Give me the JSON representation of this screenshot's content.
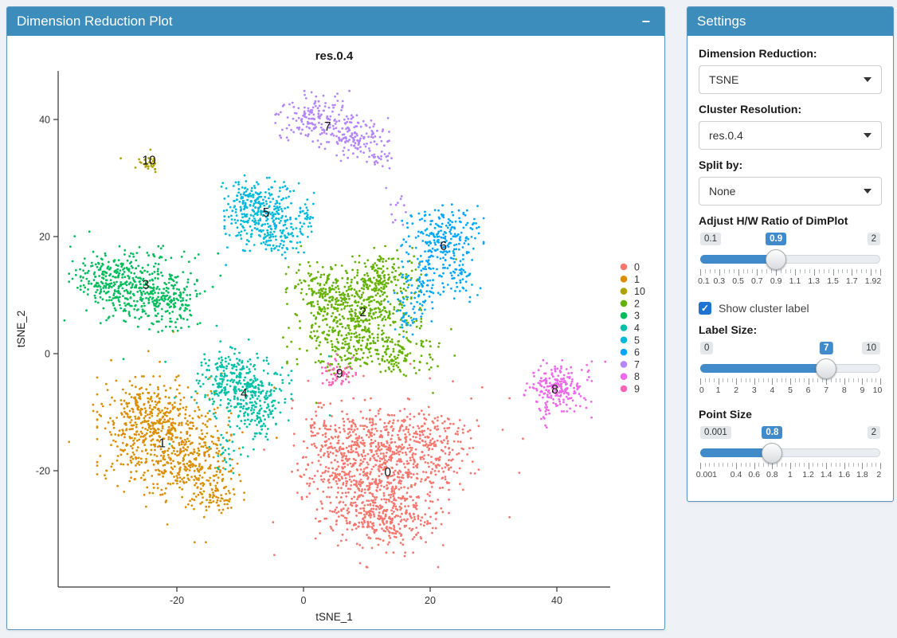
{
  "page": {
    "background": "#eef1f5",
    "accent": "#3c8dbc",
    "slider_color": "#428bca"
  },
  "plot_panel": {
    "title": "Dimension Reduction Plot",
    "minimize_icon": "−"
  },
  "settings_panel": {
    "title": "Settings",
    "selects": [
      {
        "label": "Dimension Reduction:",
        "value": "TSNE"
      },
      {
        "label": "Cluster Resolution:",
        "value": "res.0.4"
      },
      {
        "label": "Split by:",
        "value": "None"
      }
    ],
    "checkbox": {
      "label": "Show cluster label",
      "checked": true
    },
    "sliders": [
      {
        "label": "Adjust H/W Ratio of DimPlot",
        "min_label": "0.1",
        "max_label": "2",
        "value": "0.9",
        "pct": 42.1,
        "minor_step": 2.632,
        "ticks": [
          [
            "0.1",
            0
          ],
          [
            "0.3",
            10.53
          ],
          [
            "0.5",
            21.05
          ],
          [
            "0.7",
            31.58
          ],
          [
            "0.9",
            42.11
          ],
          [
            "1.1",
            52.63
          ],
          [
            "1.3",
            63.16
          ],
          [
            "1.5",
            73.68
          ],
          [
            "1.7",
            84.21
          ],
          [
            "1.9",
            94.74
          ],
          [
            "2",
            100
          ]
        ]
      },
      {
        "label": "Label Size:",
        "min_label": "0",
        "max_label": "10",
        "value": "7",
        "pct": 70,
        "minor_step": 2.5,
        "ticks": [
          [
            "0",
            0
          ],
          [
            "1",
            10
          ],
          [
            "2",
            20
          ],
          [
            "3",
            30
          ],
          [
            "4",
            40
          ],
          [
            "5",
            50
          ],
          [
            "6",
            60
          ],
          [
            "7",
            70
          ],
          [
            "8",
            80
          ],
          [
            "9",
            90
          ],
          [
            "10",
            100
          ]
        ]
      },
      {
        "label": "Point Size",
        "min_label": "0.001",
        "max_label": "2",
        "value": "0.8",
        "pct": 40,
        "minor_step": 2.5,
        "ticks": [
          [
            "0.001",
            0
          ],
          [
            "0.4",
            19.96
          ],
          [
            "0.6",
            29.97
          ],
          [
            "0.8",
            39.97
          ],
          [
            "1",
            49.97
          ],
          [
            "1.2",
            59.98
          ],
          [
            "1.4",
            69.99
          ],
          [
            "1.6",
            79.99
          ],
          [
            "1.8",
            90
          ],
          [
            "2",
            100
          ]
        ]
      }
    ]
  },
  "chart_data": {
    "type": "scatter",
    "title": "res.0.4",
    "xlabel": "tSNE_1",
    "ylabel": "tSNE_2",
    "x_ticks": [
      -20,
      0,
      20,
      40
    ],
    "y_ticks": [
      -20,
      0,
      20,
      40
    ],
    "xlim": [
      -38.5,
      48.5
    ],
    "ylim": [
      -40,
      48
    ],
    "grid": false,
    "legend_position": "right",
    "legend": [
      {
        "id": "0",
        "color": "#F8766D"
      },
      {
        "id": "1",
        "color": "#DB8E00"
      },
      {
        "id": "10",
        "color": "#AEA200"
      },
      {
        "id": "2",
        "color": "#64B200"
      },
      {
        "id": "3",
        "color": "#00BD5C"
      },
      {
        "id": "4",
        "color": "#00C1A7"
      },
      {
        "id": "5",
        "color": "#00BADE"
      },
      {
        "id": "6",
        "color": "#00A6FF"
      },
      {
        "id": "7",
        "color": "#B385FF"
      },
      {
        "id": "8",
        "color": "#EF67EB"
      },
      {
        "id": "9",
        "color": "#FF63B6"
      }
    ],
    "clusters": [
      {
        "id": "0",
        "color": "#F8766D",
        "label_pos": [
          13.3,
          -20.3
        ],
        "parts": [
          [
            11,
            -21,
            5.2,
            4.6,
            520
          ],
          [
            18,
            -15.5,
            4.2,
            3.4,
            330
          ],
          [
            6,
            -15,
            3.4,
            3.2,
            220
          ],
          [
            14,
            -28,
            3.5,
            2.6,
            200
          ],
          [
            8.5,
            -27.5,
            2.5,
            2,
            80
          ]
        ]
      },
      {
        "id": "1",
        "color": "#DB8E00",
        "label_pos": [
          -22.3,
          -15.3
        ],
        "parts": [
          [
            -22,
            -14,
            4.6,
            4.4,
            520
          ],
          [
            -17.5,
            -20,
            3.2,
            3,
            180
          ],
          [
            -26,
            -9.5,
            2.6,
            2.4,
            120
          ],
          [
            -13.5,
            -24.5,
            1.8,
            1.6,
            60
          ]
        ]
      },
      {
        "id": "2",
        "color": "#64B200",
        "label_pos": [
          9.4,
          7.1
        ],
        "parts": [
          [
            8,
            6.5,
            4.6,
            3.6,
            480
          ],
          [
            12.5,
            13,
            2.8,
            2.2,
            160
          ],
          [
            3,
            11,
            2.5,
            2,
            120
          ],
          [
            15,
            0,
            2.8,
            2,
            110
          ],
          [
            7,
            -0.5,
            2,
            1.5,
            60
          ]
        ]
      },
      {
        "id": "3",
        "color": "#00BD5C",
        "label_pos": [
          -24.9,
          11.8
        ],
        "parts": [
          [
            -26,
            11.5,
            4,
            3,
            380
          ],
          [
            -31.5,
            13.5,
            2.4,
            2,
            110
          ],
          [
            -20.5,
            8.5,
            2.2,
            2,
            90
          ]
        ]
      },
      {
        "id": "4",
        "color": "#00C1A7",
        "label_pos": [
          -9.4,
          -6.8
        ],
        "parts": [
          [
            -9.5,
            -6,
            3.3,
            2.6,
            330
          ],
          [
            -6.5,
            -11,
            1.8,
            1.6,
            60
          ],
          [
            -12,
            -1.5,
            1.6,
            1.2,
            40
          ],
          [
            -12,
            -17,
            1.4,
            2.4,
            28
          ]
        ]
      },
      {
        "id": "5",
        "color": "#00BADE",
        "label_pos": [
          -5.9,
          24.1
        ],
        "parts": [
          [
            -6.5,
            24,
            2.6,
            2.8,
            300
          ],
          [
            -3,
            19.5,
            1.6,
            1.4,
            50
          ],
          [
            -9.5,
            27,
            1.5,
            1.5,
            50
          ],
          [
            0.5,
            23,
            0.8,
            1.6,
            25
          ]
        ]
      },
      {
        "id": "6",
        "color": "#00A6FF",
        "label_pos": [
          22.1,
          18.4
        ],
        "parts": [
          [
            22,
            19.5,
            2.8,
            2.6,
            220
          ],
          [
            18.5,
            11.5,
            1.8,
            2.6,
            90
          ],
          [
            24.5,
            13,
            1.5,
            1.8,
            50
          ],
          [
            16,
            6.5,
            1.2,
            1.4,
            30
          ]
        ]
      },
      {
        "id": "7",
        "color": "#B385FF",
        "label_pos": [
          3.8,
          38.8
        ],
        "parts": [
          [
            2,
            40.5,
            2.8,
            1.9,
            160
          ],
          [
            8,
            36.8,
            2.4,
            1.7,
            130
          ],
          [
            12,
            33.5,
            1,
            1,
            20
          ],
          [
            14.5,
            25,
            0.8,
            2,
            12
          ]
        ]
      },
      {
        "id": "8",
        "color": "#EF67EB",
        "label_pos": [
          39.7,
          -6.1
        ],
        "parts": [
          [
            40,
            -5.5,
            2.4,
            1.9,
            200
          ],
          [
            38.5,
            -9.5,
            0.6,
            1.6,
            18
          ]
        ]
      },
      {
        "id": "9",
        "color": "#FF63B6",
        "label_pos": [
          5.7,
          -3.4
        ],
        "parts": [
          [
            5.5,
            -3.2,
            1.2,
            1.1,
            55
          ]
        ]
      },
      {
        "id": "10",
        "color": "#AEA200",
        "label_pos": [
          -24.4,
          33.0
        ],
        "parts": [
          [
            -24.3,
            32.4,
            1.1,
            0.7,
            28
          ]
        ]
      }
    ]
  }
}
